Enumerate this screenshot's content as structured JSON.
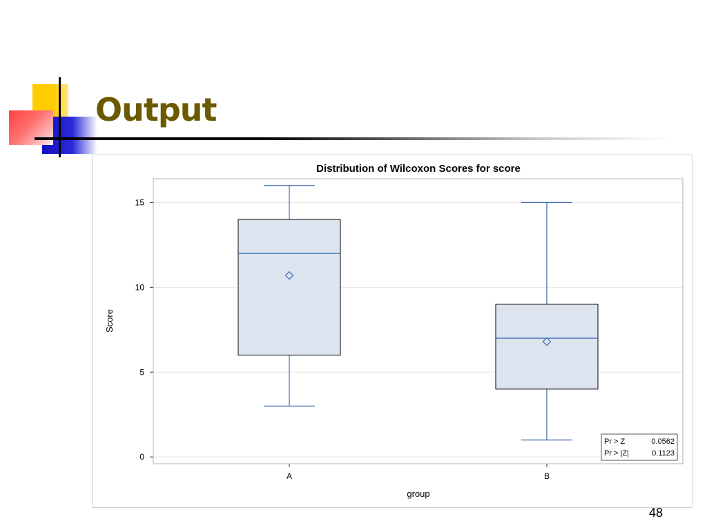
{
  "slide": {
    "title": "Output",
    "page_number": "48"
  },
  "chart_data": {
    "type": "boxplot",
    "title": "Distribution of Wilcoxon Scores for score",
    "xlabel": "group",
    "ylabel": "Score",
    "categories": [
      "A",
      "B"
    ],
    "yticks": [
      0,
      5,
      10,
      15
    ],
    "ylim": [
      -0.4,
      16.4
    ],
    "grid": true,
    "boxes": [
      {
        "category": "A",
        "min": 3,
        "q1": 6,
        "median": 12,
        "q3": 14,
        "max": 16,
        "mean": 10.7
      },
      {
        "category": "B",
        "min": 1,
        "q1": 4,
        "median": 7,
        "q3": 9,
        "max": 15,
        "mean": 6.8
      }
    ],
    "inset_table": {
      "placement": "bottom-right",
      "rows": [
        {
          "label": "Pr > Z",
          "value": "0.0562"
        },
        {
          "label": "Pr > |Z|",
          "value": "0.1123"
        }
      ]
    },
    "colors": {
      "box_fill": "#dde4ef",
      "box_edge": "#000000",
      "line": "#4a72b8",
      "grid": "#e6e6e6"
    }
  }
}
